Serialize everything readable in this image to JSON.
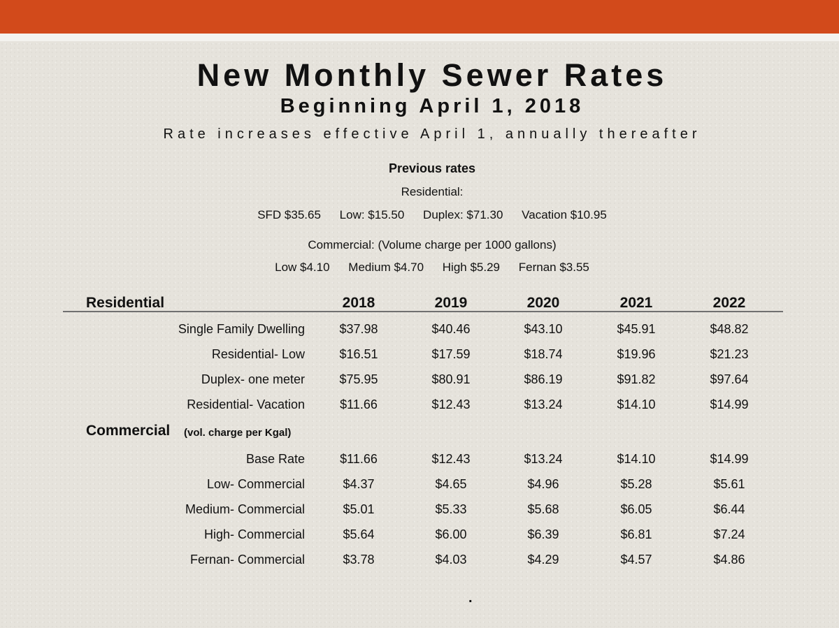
{
  "title": "New Monthly Sewer Rates",
  "subtitle": "Beginning April 1, 2018",
  "tagline": "Rate increases effective April 1, annually thereafter",
  "previous": {
    "heading": "Previous rates",
    "residential_label": "Residential:",
    "residential_items": [
      "SFD $35.65",
      "Low: $15.50",
      "Duplex: $71.30",
      "Vacation $10.95"
    ],
    "commercial_label": "Commercial: (Volume charge per 1000 gallons)",
    "commercial_items": [
      "Low $4.10",
      "Medium $4.70",
      "High $5.29",
      "Fernan $3.55"
    ]
  },
  "table": {
    "years": [
      "2018",
      "2019",
      "2020",
      "2021",
      "2022"
    ],
    "residential_heading": "Residential",
    "residential_rows": [
      {
        "label": "Single Family Dwelling",
        "values": [
          "$37.98",
          "$40.46",
          "$43.10",
          "$45.91",
          "$48.82"
        ]
      },
      {
        "label": "Residential- Low",
        "values": [
          "$16.51",
          "$17.59",
          "$18.74",
          "$19.96",
          "$21.23"
        ]
      },
      {
        "label": "Duplex- one meter",
        "values": [
          "$75.95",
          "$80.91",
          "$86.19",
          "$91.82",
          "$97.64"
        ]
      },
      {
        "label": "Residential- Vacation",
        "values": [
          "$11.66",
          "$12.43",
          "$13.24",
          "$14.10",
          "$14.99"
        ]
      }
    ],
    "commercial_heading": "Commercial",
    "commercial_note": "(vol. charge per Kgal)",
    "commercial_rows": [
      {
        "label": "Base Rate",
        "values": [
          "$11.66",
          "$12.43",
          "$13.24",
          "$14.10",
          "$14.99"
        ]
      },
      {
        "label": "Low- Commercial",
        "values": [
          "$4.37",
          "$4.65",
          "$4.96",
          "$5.28",
          "$5.61"
        ]
      },
      {
        "label": "Medium- Commercial",
        "values": [
          "$5.01",
          "$5.33",
          "$5.68",
          "$6.05",
          "$6.44"
        ]
      },
      {
        "label": "High- Commercial",
        "values": [
          "$5.64",
          "$6.00",
          "$6.39",
          "$6.81",
          "$7.24"
        ]
      },
      {
        "label": "Fernan- Commercial",
        "values": [
          "$3.78",
          "$4.03",
          "$4.29",
          "$4.57",
          "$4.86"
        ]
      }
    ]
  },
  "footer_mark": ".",
  "colors": {
    "accent_bar": "#d24a1b",
    "background": "#e6e3dc"
  }
}
